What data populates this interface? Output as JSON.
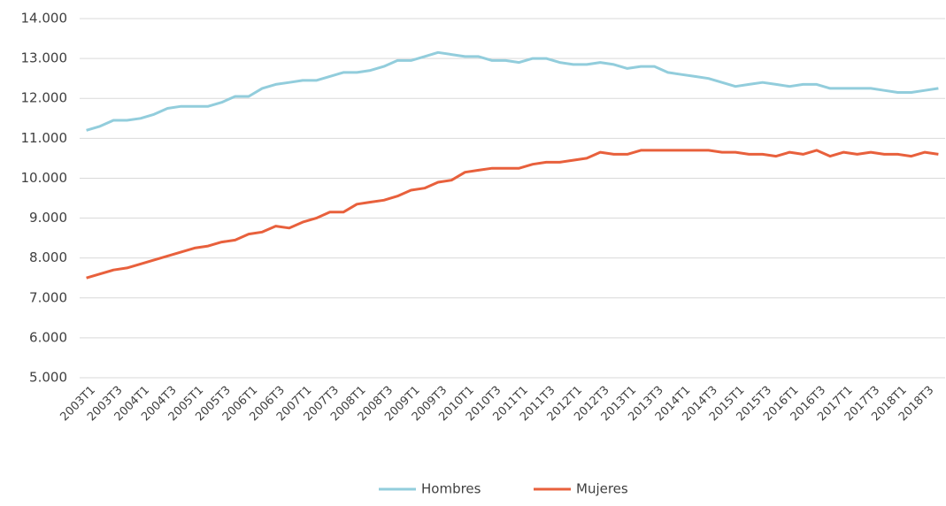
{
  "chart_data": {
    "type": "line",
    "categories": [
      "2003T1",
      null,
      "2003T3",
      null,
      "2004T1",
      null,
      "2004T3",
      null,
      "2005T1",
      null,
      "2005T3",
      null,
      "2006T1",
      null,
      "2006T3",
      null,
      "2007T1",
      null,
      "2007T3",
      null,
      "2008T1",
      null,
      "2008T3",
      null,
      "2009T1",
      null,
      "2009T3",
      null,
      "2010T1",
      null,
      "2010T3",
      null,
      "2011T1",
      null,
      "2011T3",
      null,
      "2012T1",
      null,
      "2012T3",
      null,
      "2013T1",
      null,
      "2013T3",
      null,
      "2014T1",
      null,
      "2014T3",
      null,
      "2015T1",
      null,
      "2015T3",
      null,
      "2016T1",
      null,
      "2016T3",
      null,
      "2017T1",
      null,
      "2017T3",
      null,
      "2018T1",
      null,
      "2018T3",
      null
    ],
    "series": [
      {
        "name": "Hombres",
        "color": "#92cddc",
        "values": [
          11200,
          11300,
          11450,
          11450,
          11500,
          11600,
          11750,
          11800,
          11800,
          11800,
          11900,
          12050,
          12050,
          12250,
          12350,
          12400,
          12450,
          12450,
          12550,
          12650,
          12650,
          12700,
          12800,
          12950,
          12950,
          13050,
          13150,
          13100,
          13050,
          13050,
          12950,
          12950,
          12900,
          13000,
          13000,
          12900,
          12850,
          12850,
          12900,
          12850,
          12750,
          12800,
          12800,
          12650,
          12600,
          12550,
          12500,
          12400,
          12300,
          12350,
          12400,
          12350,
          12300,
          12350,
          12350,
          12250,
          12250,
          12250,
          12250,
          12200,
          12150,
          12150,
          12200,
          12250
        ]
      },
      {
        "name": "Mujeres",
        "color": "#e8603c",
        "values": [
          7500,
          7600,
          7700,
          7750,
          7850,
          7950,
          8050,
          8150,
          8250,
          8300,
          8400,
          8450,
          8600,
          8650,
          8800,
          8750,
          8900,
          9000,
          9150,
          9150,
          9350,
          9400,
          9450,
          9550,
          9700,
          9750,
          9900,
          9950,
          10150,
          10200,
          10250,
          10250,
          10250,
          10350,
          10400,
          10400,
          10450,
          10500,
          10650,
          10600,
          10600,
          10700,
          10700,
          10700,
          10700,
          10700,
          10700,
          10650,
          10650,
          10600,
          10600,
          10550,
          10650,
          10600,
          10700,
          10550,
          10650,
          10600,
          10650,
          10600,
          10600,
          10550,
          10650,
          10600
        ]
      }
    ],
    "ylim": [
      5000,
      14000
    ],
    "yticks": [
      {
        "value": 5000,
        "label": "5.000"
      },
      {
        "value": 6000,
        "label": "6.000"
      },
      {
        "value": 7000,
        "label": "7.000"
      },
      {
        "value": 8000,
        "label": "8.000"
      },
      {
        "value": 9000,
        "label": "9.000"
      },
      {
        "value": 10000,
        "label": "10.000"
      },
      {
        "value": 11000,
        "label": "11.000"
      },
      {
        "value": 12000,
        "label": "12.000"
      },
      {
        "value": 13000,
        "label": "13.000"
      },
      {
        "value": 14000,
        "label": "14.000"
      }
    ],
    "grid": true,
    "legend": "bottom"
  }
}
